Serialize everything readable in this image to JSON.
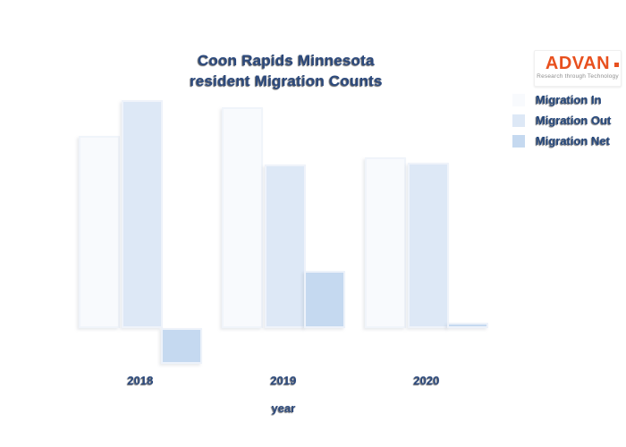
{
  "page": {
    "background": "#ffffff"
  },
  "title_lines": [
    "Coon Rapids Minnesota",
    "resident Migration Counts"
  ],
  "logo": {
    "brand": "ADVAN",
    "tagline": "Research through Technology",
    "brand_color": "#e8501e"
  },
  "chart_data": {
    "type": "bar",
    "title": "Coon Rapids Minnesota resident Migration Counts",
    "categories": [
      "2018",
      "2019",
      "2020"
    ],
    "series": [
      {
        "name": "Migration In",
        "color": "#f8fafd",
        "values": [
          215,
          247,
          191
        ]
      },
      {
        "name": "Migration Out",
        "color": "#dde8f6",
        "values": [
          255,
          183,
          185
        ]
      },
      {
        "name": "Migration Net",
        "color": "#c5d9f0",
        "values": [
          -40,
          64,
          6
        ]
      }
    ],
    "xlabel": "year",
    "ylabel": "",
    "ylim": [
      -50,
      270
    ],
    "grid": false,
    "legend_position": "top-right",
    "y_axis_labels_shown": false,
    "text_color": "#2c4a7e"
  }
}
